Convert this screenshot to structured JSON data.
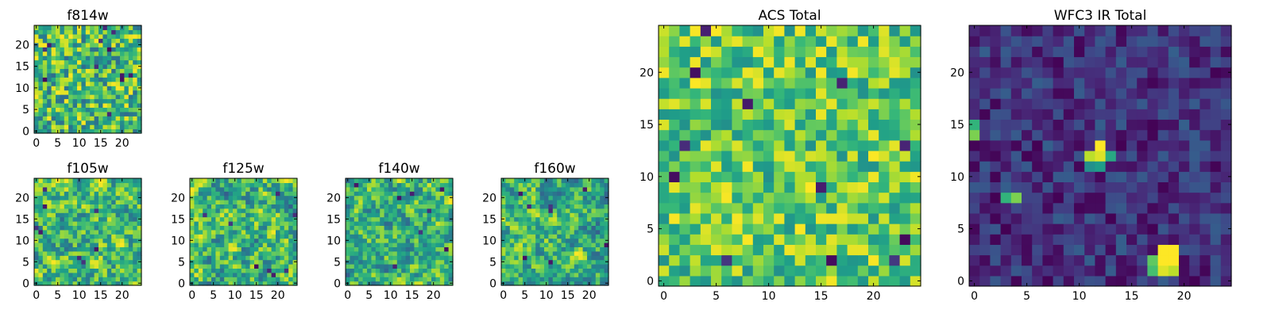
{
  "chart_data": [
    {
      "type": "heatmap",
      "title": "f814w",
      "xlim": [
        -0.5,
        24.5
      ],
      "ylim": [
        -0.5,
        24.5
      ],
      "xticks": [
        0,
        5,
        10,
        15,
        20
      ],
      "yticks": [
        0,
        5,
        10,
        15,
        20
      ],
      "colormap": "viridis",
      "pattern": "uniform-noise",
      "seed": 11,
      "low": 0.35,
      "high": 1.0
    },
    {
      "type": "heatmap",
      "title": "f105w",
      "xlim": [
        -0.5,
        24.5
      ],
      "ylim": [
        -0.5,
        24.5
      ],
      "xticks": [
        0,
        5,
        10,
        15,
        20
      ],
      "yticks": [
        0,
        5,
        10,
        15,
        20
      ],
      "colormap": "viridis",
      "pattern": "smooth-noise",
      "seed": 23,
      "low": 0.35,
      "high": 1.0
    },
    {
      "type": "heatmap",
      "title": "f125w",
      "xlim": [
        -0.5,
        24.5
      ],
      "ylim": [
        -0.5,
        24.5
      ],
      "xticks": [
        0,
        5,
        10,
        15,
        20
      ],
      "yticks": [
        0,
        5,
        10,
        15,
        20
      ],
      "colormap": "viridis",
      "pattern": "smooth-noise",
      "seed": 37,
      "low": 0.3,
      "high": 1.0
    },
    {
      "type": "heatmap",
      "title": "f140w",
      "xlim": [
        -0.5,
        24.5
      ],
      "ylim": [
        -0.5,
        24.5
      ],
      "xticks": [
        0,
        5,
        10,
        15,
        20
      ],
      "yticks": [
        0,
        5,
        10,
        15,
        20
      ],
      "colormap": "viridis",
      "pattern": "smooth-noise",
      "seed": 41,
      "low": 0.3,
      "high": 1.0
    },
    {
      "type": "heatmap",
      "title": "f160w",
      "xlim": [
        -0.5,
        24.5
      ],
      "ylim": [
        -0.5,
        24.5
      ],
      "xticks": [
        0,
        5,
        10,
        15,
        20
      ],
      "yticks": [
        0,
        5,
        10,
        15,
        20
      ],
      "colormap": "viridis",
      "pattern": "smooth-noise",
      "seed": 53,
      "low": 0.3,
      "high": 1.0
    },
    {
      "type": "heatmap",
      "title": "ACS Total",
      "xlim": [
        -0.5,
        24.5
      ],
      "ylim": [
        -0.5,
        24.5
      ],
      "xticks": [
        0,
        5,
        10,
        15,
        20
      ],
      "yticks": [
        0,
        5,
        10,
        15,
        20
      ],
      "colormap": "viridis",
      "pattern": "uniform-noise",
      "seed": 67,
      "low": 0.5,
      "high": 1.0
    },
    {
      "type": "heatmap",
      "title": "WFC3 IR Total",
      "xlim": [
        -0.5,
        24.5
      ],
      "ylim": [
        -0.5,
        24.5
      ],
      "xticks": [
        0,
        5,
        10,
        15,
        20
      ],
      "yticks": [
        0,
        5,
        10,
        15,
        20
      ],
      "colormap": "viridis",
      "pattern": "background-with-sources",
      "seed": 79,
      "low": 0.0,
      "high": 0.3,
      "sources": [
        {
          "x": 12,
          "y": 13,
          "value": 1.0
        },
        {
          "x": 11,
          "y": 12,
          "value": 0.9
        },
        {
          "x": 12,
          "y": 12,
          "value": 0.95
        },
        {
          "x": 12,
          "y": 11,
          "value": 0.55
        },
        {
          "x": 11,
          "y": 11,
          "value": 0.5
        },
        {
          "x": 13,
          "y": 12,
          "value": 0.6
        },
        {
          "x": 18,
          "y": 3,
          "value": 1.0
        },
        {
          "x": 19,
          "y": 3,
          "value": 1.0
        },
        {
          "x": 18,
          "y": 2,
          "value": 1.0
        },
        {
          "x": 19,
          "y": 2,
          "value": 1.0
        },
        {
          "x": 18,
          "y": 1,
          "value": 0.95
        },
        {
          "x": 19,
          "y": 1,
          "value": 0.9
        },
        {
          "x": 17,
          "y": 2,
          "value": 0.75
        },
        {
          "x": 17,
          "y": 1,
          "value": 0.7
        },
        {
          "x": 0,
          "y": 15,
          "value": 0.65
        },
        {
          "x": 0,
          "y": 14,
          "value": 0.8
        },
        {
          "x": 4,
          "y": 8,
          "value": 0.8
        },
        {
          "x": 3,
          "y": 8,
          "value": 0.65
        }
      ]
    }
  ]
}
